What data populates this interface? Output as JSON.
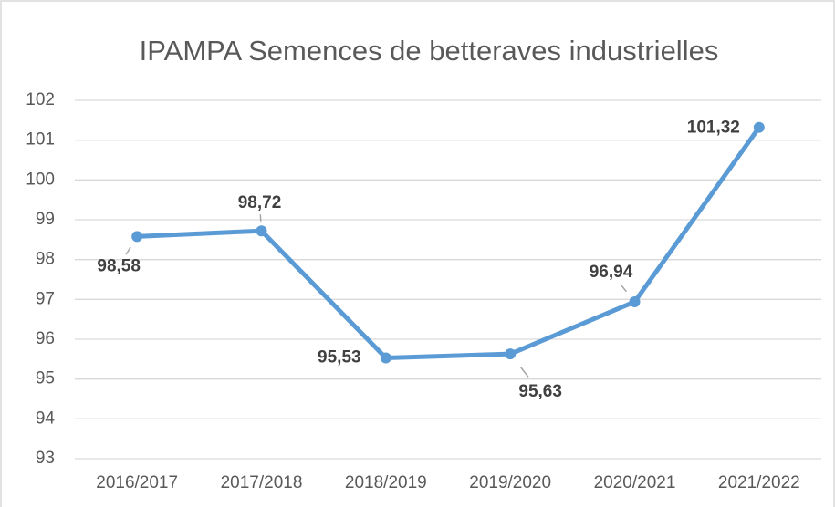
{
  "chart_data": {
    "type": "line",
    "title": "IPAMPA Semences de betteraves industrielles",
    "categories": [
      "2016/2017",
      "2017/2018",
      "2018/2019",
      "2019/2020",
      "2020/2021",
      "2021/2022"
    ],
    "series": [
      {
        "name": "IPAMPA",
        "color": "#5b9bd5",
        "values": [
          98.58,
          98.72,
          95.53,
          95.63,
          96.94,
          101.32
        ],
        "value_labels": [
          "98,58",
          "98,72",
          "95,53",
          "95,63",
          "96,94",
          "101,32"
        ]
      }
    ],
    "ylim": [
      93,
      102
    ],
    "yticks": [
      93,
      94,
      95,
      96,
      97,
      98,
      99,
      100,
      101,
      102
    ],
    "grid": true
  }
}
